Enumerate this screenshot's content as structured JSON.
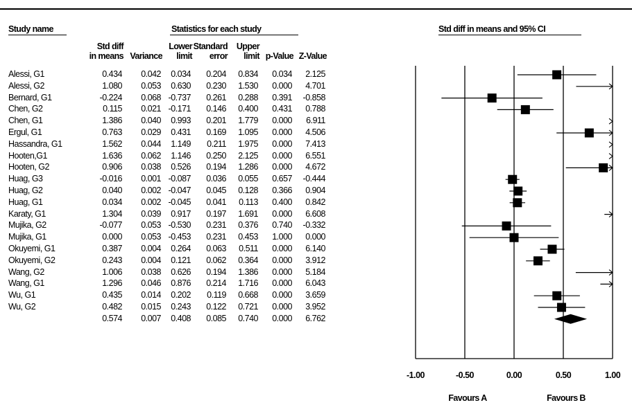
{
  "chart_data": {
    "type": "forest",
    "header_study": "Study name",
    "header_stats": "Statistics for each study",
    "header_plot": "Std diff in means and 95% CI",
    "columns": [
      {
        "line1": "Std diff",
        "line2": "in means"
      },
      {
        "line1": "",
        "line2": "Variance"
      },
      {
        "line1": "Lower",
        "line2": "limit"
      },
      {
        "line1": "Standard",
        "line2": "error"
      },
      {
        "line1": "Upper",
        "line2": "limit"
      },
      {
        "line1": "",
        "line2": "p-Value"
      },
      {
        "line1": "",
        "line2": "Z-Value"
      }
    ],
    "studies": [
      {
        "name": "Alessi, G1",
        "smd": 0.434,
        "variance": 0.042,
        "lower": 0.034,
        "se": 0.204,
        "upper": 0.834,
        "p": 0.034,
        "z": 2.125,
        "cells": [
          "0.434",
          "0.042",
          "0.034",
          "0.204",
          "0.834",
          "0.034",
          "2.125"
        ]
      },
      {
        "name": "Alessi, G2",
        "smd": 1.08,
        "variance": 0.053,
        "lower": 0.63,
        "se": 0.23,
        "upper": 1.53,
        "p": 0.0,
        "z": 4.701,
        "cells": [
          "1.080",
          "0.053",
          "0.630",
          "0.230",
          "1.530",
          "0.000",
          "4.701"
        ]
      },
      {
        "name": "Bernard, G1",
        "smd": -0.224,
        "variance": 0.068,
        "lower": -0.737,
        "se": 0.261,
        "upper": 0.288,
        "p": 0.391,
        "z": -0.858,
        "cells": [
          "-0.224",
          "0.068",
          "-0.737",
          "0.261",
          "0.288",
          "0.391",
          "-0.858"
        ]
      },
      {
        "name": "Chen, G2",
        "smd": 0.115,
        "variance": 0.021,
        "lower": -0.171,
        "se": 0.146,
        "upper": 0.4,
        "p": 0.431,
        "z": 0.788,
        "cells": [
          "0.115",
          "0.021",
          "-0.171",
          "0.146",
          "0.400",
          "0.431",
          "0.788"
        ]
      },
      {
        "name": "Chen, G1",
        "smd": 1.386,
        "variance": 0.04,
        "lower": 0.993,
        "se": 0.201,
        "upper": 1.779,
        "p": 0.0,
        "z": 6.911,
        "cells": [
          "1.386",
          "0.040",
          "0.993",
          "0.201",
          "1.779",
          "0.000",
          "6.911"
        ]
      },
      {
        "name": "Ergul, G1",
        "smd": 0.763,
        "variance": 0.029,
        "lower": 0.431,
        "se": 0.169,
        "upper": 1.095,
        "p": 0.0,
        "z": 4.506,
        "cells": [
          "0.763",
          "0.029",
          "0.431",
          "0.169",
          "1.095",
          "0.000",
          "4.506"
        ]
      },
      {
        "name": "Hassandra, G1",
        "smd": 1.562,
        "variance": 0.044,
        "lower": 1.149,
        "se": 0.211,
        "upper": 1.975,
        "p": 0.0,
        "z": 7.413,
        "cells": [
          "1.562",
          "0.044",
          "1.149",
          "0.211",
          "1.975",
          "0.000",
          "7.413"
        ]
      },
      {
        "name": "Hooten,G1",
        "smd": 1.636,
        "variance": 0.062,
        "lower": 1.146,
        "se": 0.25,
        "upper": 2.125,
        "p": 0.0,
        "z": 6.551,
        "cells": [
          "1.636",
          "0.062",
          "1.146",
          "0.250",
          "2.125",
          "0.000",
          "6.551"
        ]
      },
      {
        "name": "Hooten, G2",
        "smd": 0.906,
        "variance": 0.038,
        "lower": 0.526,
        "se": 0.194,
        "upper": 1.286,
        "p": 0.0,
        "z": 4.672,
        "cells": [
          "0.906",
          "0.038",
          "0.526",
          "0.194",
          "1.286",
          "0.000",
          "4.672"
        ]
      },
      {
        "name": "Huag, G3",
        "smd": -0.016,
        "variance": 0.001,
        "lower": -0.087,
        "se": 0.036,
        "upper": 0.055,
        "p": 0.657,
        "z": -0.444,
        "cells": [
          "-0.016",
          "0.001",
          "-0.087",
          "0.036",
          "0.055",
          "0.657",
          "-0.444"
        ]
      },
      {
        "name": "Huag, G2",
        "smd": 0.04,
        "variance": 0.002,
        "lower": -0.047,
        "se": 0.045,
        "upper": 0.128,
        "p": 0.366,
        "z": 0.904,
        "cells": [
          "0.040",
          "0.002",
          "-0.047",
          "0.045",
          "0.128",
          "0.366",
          "0.904"
        ]
      },
      {
        "name": "Huag, G1",
        "smd": 0.034,
        "variance": 0.002,
        "lower": -0.045,
        "se": 0.041,
        "upper": 0.113,
        "p": 0.4,
        "z": 0.842,
        "cells": [
          "0.034",
          "0.002",
          "-0.045",
          "0.041",
          "0.113",
          "0.400",
          "0.842"
        ]
      },
      {
        "name": "Karaty, G1",
        "smd": 1.304,
        "variance": 0.039,
        "lower": 0.917,
        "se": 0.197,
        "upper": 1.691,
        "p": 0.0,
        "z": 6.608,
        "cells": [
          "1.304",
          "0.039",
          "0.917",
          "0.197",
          "1.691",
          "0.000",
          "6.608"
        ]
      },
      {
        "name": "Mujika, G2",
        "smd": -0.077,
        "variance": 0.053,
        "lower": -0.53,
        "se": 0.231,
        "upper": 0.376,
        "p": 0.74,
        "z": -0.332,
        "cells": [
          "-0.077",
          "0.053",
          "-0.530",
          "0.231",
          "0.376",
          "0.740",
          "-0.332"
        ]
      },
      {
        "name": "Mujika, G1",
        "smd": 0.0,
        "variance": 0.053,
        "lower": -0.453,
        "se": 0.231,
        "upper": 0.453,
        "p": 1.0,
        "z": 0.0,
        "cells": [
          "0.000",
          "0.053",
          "-0.453",
          "0.231",
          "0.453",
          "1.000",
          "0.000"
        ]
      },
      {
        "name": "Okuyemi, G1",
        "smd": 0.387,
        "variance": 0.004,
        "lower": 0.264,
        "se": 0.063,
        "upper": 0.511,
        "p": 0.0,
        "z": 6.14,
        "cells": [
          "0.387",
          "0.004",
          "0.264",
          "0.063",
          "0.511",
          "0.000",
          "6.140"
        ]
      },
      {
        "name": "Okuyemi, G2",
        "smd": 0.243,
        "variance": 0.004,
        "lower": 0.121,
        "se": 0.062,
        "upper": 0.364,
        "p": 0.0,
        "z": 3.912,
        "cells": [
          "0.243",
          "0.004",
          "0.121",
          "0.062",
          "0.364",
          "0.000",
          "3.912"
        ]
      },
      {
        "name": "Wang, G2",
        "smd": 1.006,
        "variance": 0.038,
        "lower": 0.626,
        "se": 0.194,
        "upper": 1.386,
        "p": 0.0,
        "z": 5.184,
        "cells": [
          "1.006",
          "0.038",
          "0.626",
          "0.194",
          "1.386",
          "0.000",
          "5.184"
        ]
      },
      {
        "name": "Wang, G1",
        "smd": 1.296,
        "variance": 0.046,
        "lower": 0.876,
        "se": 0.214,
        "upper": 1.716,
        "p": 0.0,
        "z": 6.043,
        "cells": [
          "1.296",
          "0.046",
          "0.876",
          "0.214",
          "1.716",
          "0.000",
          "6.043"
        ]
      },
      {
        "name": "Wu, G1",
        "smd": 0.435,
        "variance": 0.014,
        "lower": 0.202,
        "se": 0.119,
        "upper": 0.668,
        "p": 0.0,
        "z": 3.659,
        "cells": [
          "0.435",
          "0.014",
          "0.202",
          "0.119",
          "0.668",
          "0.000",
          "3.659"
        ]
      },
      {
        "name": "Wu, G2",
        "smd": 0.482,
        "variance": 0.015,
        "lower": 0.243,
        "se": 0.122,
        "upper": 0.721,
        "p": 0.0,
        "z": 3.952,
        "cells": [
          "0.482",
          "0.015",
          "0.243",
          "0.122",
          "0.721",
          "0.000",
          "3.952"
        ]
      }
    ],
    "summary": {
      "smd": 0.574,
      "variance": 0.007,
      "lower": 0.408,
      "se": 0.085,
      "upper": 0.74,
      "p": 0.0,
      "z": 6.762,
      "cells": [
        "0.574",
        "0.007",
        "0.408",
        "0.085",
        "0.740",
        "0.000",
        "6.762"
      ]
    },
    "xlim": [
      -1.0,
      1.0
    ],
    "xticks": [
      -1.0,
      -0.5,
      0.0,
      0.5,
      1.0
    ],
    "xtick_labels": [
      "-1.00",
      "-0.50",
      "0.00",
      "0.50",
      "1.00"
    ],
    "favours_left": "Favours A",
    "favours_right": "Favours B"
  }
}
